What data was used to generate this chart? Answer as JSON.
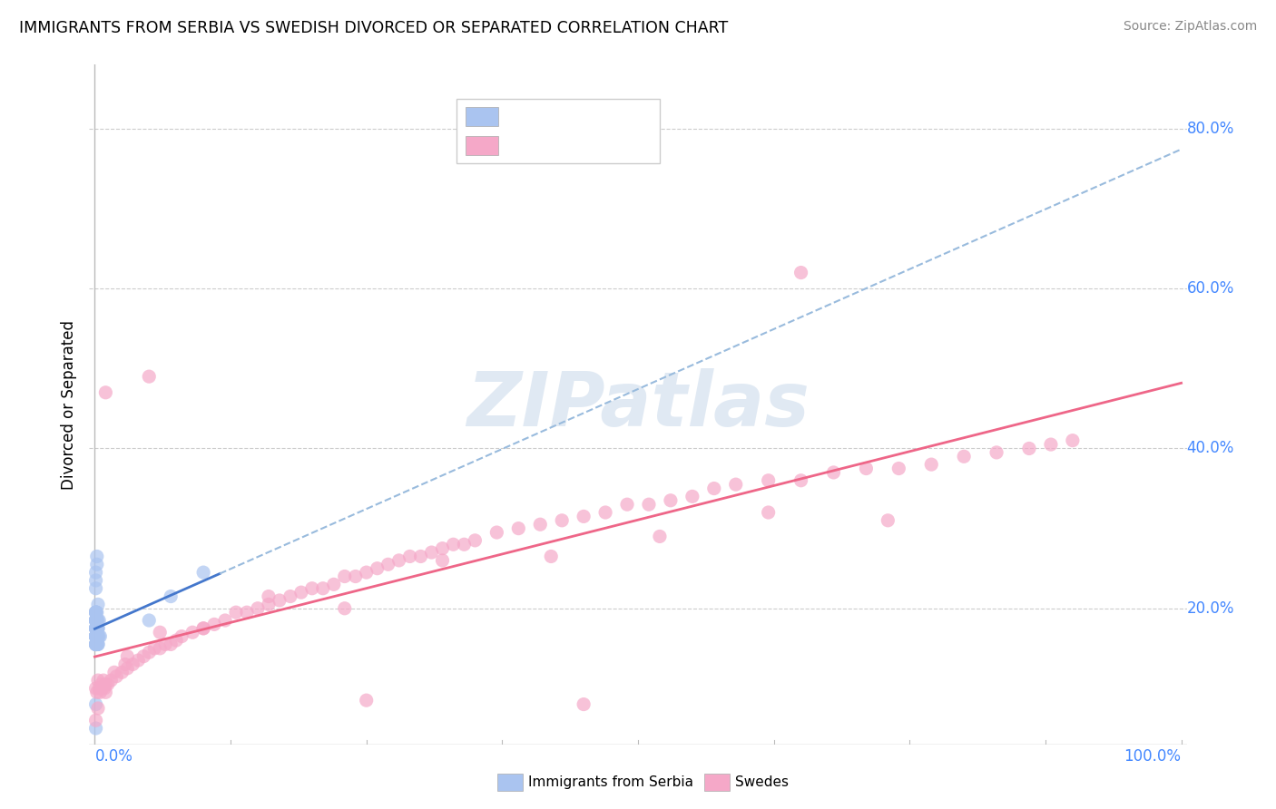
{
  "title": "IMMIGRANTS FROM SERBIA VS SWEDISH DIVORCED OR SEPARATED CORRELATION CHART",
  "source": "Source: ZipAtlas.com",
  "ylabel": "Divorced or Separated",
  "color_blue": "#aac4f0",
  "color_pink": "#f5a8c8",
  "trendline_blue_solid": "#4477cc",
  "trendline_blue_dash": "#99bbdd",
  "trendline_pink": "#ee6688",
  "watermark_color": "#c8d8ea",
  "grid_color": "#cccccc",
  "tick_color": "#4488ff",
  "blue_scatter_x": [
    0.001,
    0.002,
    0.001,
    0.003,
    0.001,
    0.002,
    0.001,
    0.002,
    0.003,
    0.001,
    0.001,
    0.002,
    0.001,
    0.003,
    0.001,
    0.002,
    0.001,
    0.001,
    0.002,
    0.001,
    0.001,
    0.001,
    0.002,
    0.001,
    0.001,
    0.002,
    0.001,
    0.001,
    0.002,
    0.001,
    0.001,
    0.002,
    0.001,
    0.003,
    0.001,
    0.002,
    0.001,
    0.004,
    0.002,
    0.001,
    0.001,
    0.002,
    0.001,
    0.003,
    0.002,
    0.001,
    0.004,
    0.001,
    0.002,
    0.001,
    0.001,
    0.003,
    0.002,
    0.001,
    0.001,
    0.002,
    0.001,
    0.005,
    0.001,
    0.002,
    0.001,
    0.002,
    0.001,
    0.003,
    0.001,
    0.002,
    0.001,
    0.001,
    0.003,
    0.002,
    0.001,
    0.002,
    0.001,
    0.001,
    0.002,
    0.001,
    0.001,
    0.05,
    0.07,
    0.1
  ],
  "blue_scatter_y": [
    0.175,
    0.195,
    0.185,
    0.205,
    0.165,
    0.175,
    0.195,
    0.155,
    0.185,
    0.165,
    0.175,
    0.165,
    0.185,
    0.155,
    0.175,
    0.165,
    0.155,
    0.195,
    0.175,
    0.185,
    0.165,
    0.175,
    0.155,
    0.185,
    0.175,
    0.165,
    0.185,
    0.155,
    0.175,
    0.165,
    0.175,
    0.185,
    0.165,
    0.175,
    0.155,
    0.175,
    0.185,
    0.165,
    0.175,
    0.195,
    0.165,
    0.175,
    0.185,
    0.155,
    0.175,
    0.165,
    0.185,
    0.155,
    0.175,
    0.165,
    0.185,
    0.165,
    0.175,
    0.165,
    0.195,
    0.175,
    0.185,
    0.165,
    0.155,
    0.175,
    0.185,
    0.165,
    0.195,
    0.175,
    0.165,
    0.185,
    0.175,
    0.155,
    0.165,
    0.175,
    0.225,
    0.255,
    0.235,
    0.245,
    0.265,
    0.05,
    0.08,
    0.185,
    0.215,
    0.245
  ],
  "pink_scatter_x": [
    0.001,
    0.002,
    0.003,
    0.004,
    0.005,
    0.006,
    0.007,
    0.008,
    0.009,
    0.01,
    0.012,
    0.015,
    0.018,
    0.02,
    0.025,
    0.028,
    0.03,
    0.035,
    0.04,
    0.045,
    0.05,
    0.055,
    0.06,
    0.065,
    0.07,
    0.075,
    0.08,
    0.09,
    0.1,
    0.11,
    0.12,
    0.13,
    0.14,
    0.15,
    0.16,
    0.17,
    0.18,
    0.19,
    0.2,
    0.21,
    0.22,
    0.23,
    0.24,
    0.25,
    0.26,
    0.27,
    0.28,
    0.29,
    0.3,
    0.31,
    0.32,
    0.33,
    0.34,
    0.35,
    0.37,
    0.39,
    0.41,
    0.43,
    0.45,
    0.47,
    0.49,
    0.51,
    0.53,
    0.55,
    0.57,
    0.59,
    0.62,
    0.65,
    0.68,
    0.71,
    0.74,
    0.77,
    0.8,
    0.83,
    0.86,
    0.88,
    0.9,
    0.001,
    0.003,
    0.01,
    0.03,
    0.06,
    0.1,
    0.16,
    0.23,
    0.32,
    0.42,
    0.52,
    0.62,
    0.73,
    0.01,
    0.05,
    0.25,
    0.45,
    0.65
  ],
  "pink_scatter_y": [
    0.1,
    0.095,
    0.11,
    0.1,
    0.095,
    0.105,
    0.1,
    0.11,
    0.1,
    0.095,
    0.105,
    0.11,
    0.12,
    0.115,
    0.12,
    0.13,
    0.125,
    0.13,
    0.135,
    0.14,
    0.145,
    0.15,
    0.15,
    0.155,
    0.155,
    0.16,
    0.165,
    0.17,
    0.175,
    0.18,
    0.185,
    0.195,
    0.195,
    0.2,
    0.205,
    0.21,
    0.215,
    0.22,
    0.225,
    0.225,
    0.23,
    0.24,
    0.24,
    0.245,
    0.25,
    0.255,
    0.26,
    0.265,
    0.265,
    0.27,
    0.275,
    0.28,
    0.28,
    0.285,
    0.295,
    0.3,
    0.305,
    0.31,
    0.315,
    0.32,
    0.33,
    0.33,
    0.335,
    0.34,
    0.35,
    0.355,
    0.36,
    0.36,
    0.37,
    0.375,
    0.375,
    0.38,
    0.39,
    0.395,
    0.4,
    0.405,
    0.41,
    0.06,
    0.075,
    0.105,
    0.14,
    0.17,
    0.175,
    0.215,
    0.2,
    0.26,
    0.265,
    0.29,
    0.32,
    0.31,
    0.47,
    0.49,
    0.085,
    0.08,
    0.62
  ]
}
